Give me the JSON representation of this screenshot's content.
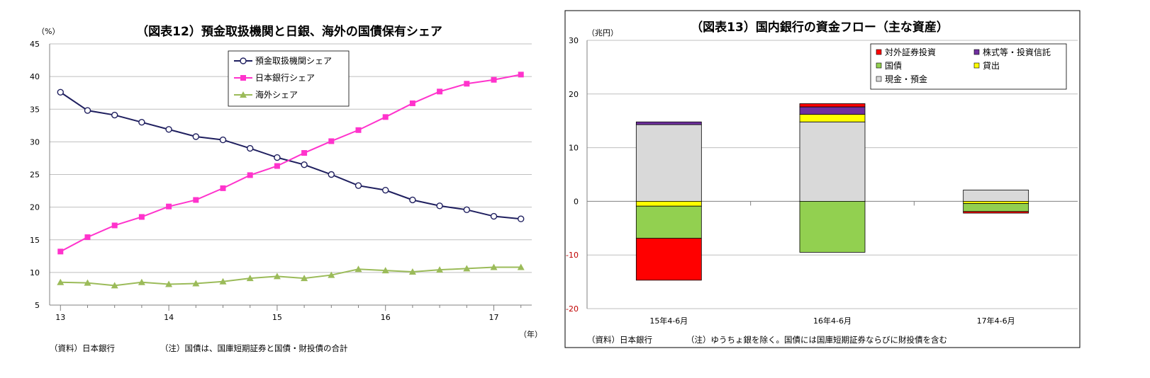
{
  "chart_data": [
    {
      "type": "line",
      "title": "（図表12）預金取扱機関と日銀、海外の国債保有シェア",
      "ylabel": "（%）",
      "xlabel": "（年）",
      "ylim": [
        5,
        45
      ],
      "yticks": [
        "5",
        "10",
        "15",
        "20",
        "25",
        "30",
        "35",
        "40",
        "45"
      ],
      "xticks": [
        "13",
        "14",
        "15",
        "16",
        "17"
      ],
      "grid": true,
      "legend": "top-center",
      "x": [
        13.0,
        13.25,
        13.5,
        13.75,
        14.0,
        14.25,
        14.5,
        14.75,
        15.0,
        15.25,
        15.5,
        15.75,
        16.0,
        16.25,
        16.5,
        16.75,
        17.0,
        17.25
      ],
      "series": [
        {
          "name": "預金取扱機関シェア",
          "color": "#1f1f5f",
          "marker": "circle",
          "values": [
            37.6,
            34.8,
            34.1,
            33.0,
            31.9,
            30.8,
            30.3,
            29.0,
            27.6,
            26.5,
            25.0,
            23.3,
            22.6,
            21.1,
            20.2,
            19.6,
            18.6,
            18.2
          ]
        },
        {
          "name": "日本銀行シェア",
          "color": "#ff33cc",
          "marker": "square",
          "values": [
            13.2,
            15.4,
            17.2,
            18.5,
            20.1,
            21.1,
            22.9,
            24.9,
            26.3,
            28.3,
            30.1,
            31.8,
            33.8,
            35.9,
            37.7,
            38.9,
            39.5,
            40.3
          ]
        },
        {
          "name": "海外シェア",
          "color": "#9bbb59",
          "marker": "triangle",
          "values": [
            8.5,
            8.4,
            8.0,
            8.5,
            8.2,
            8.3,
            8.6,
            9.1,
            9.4,
            9.1,
            9.6,
            10.5,
            10.3,
            10.1,
            10.4,
            10.6,
            10.8,
            10.8
          ]
        }
      ],
      "source_note": "（資料）日本銀行",
      "footnote": "（注）国債は、国庫短期証券と国債・財投債の合計"
    },
    {
      "type": "bar",
      "stacked": true,
      "title": "（図表13）国内銀行の資金フロー（主な資産）",
      "ylabel": "（兆円）",
      "ylim": [
        -20,
        30
      ],
      "yticks": [
        "-20",
        "-10",
        "0",
        "10",
        "20",
        "30"
      ],
      "grid": true,
      "legend": "top-right",
      "categories": [
        "15年4-6月",
        "16年4-6月",
        "17年4-6月"
      ],
      "series": [
        {
          "name": "対外証券投資",
          "color": "#ff0000",
          "values": [
            -7.8,
            0.6,
            -0.3
          ]
        },
        {
          "name": "株式等・投資信託",
          "color": "#7030a0",
          "values": [
            0.5,
            1.4,
            0.0
          ]
        },
        {
          "name": "国債",
          "color": "#92d050",
          "values": [
            -6.0,
            -9.5,
            -1.5
          ]
        },
        {
          "name": "貸出",
          "color": "#ffff00",
          "values": [
            -0.9,
            1.4,
            -0.4
          ]
        },
        {
          "name": "現金・預金",
          "color": "#d9d9d9",
          "values": [
            14.3,
            14.8,
            2.1
          ]
        }
      ],
      "source_note": "（資料）日本銀行",
      "footnote": "（注）ゆうちょ銀を除く。国債には国庫短期証券ならびに財投債を含む"
    }
  ]
}
